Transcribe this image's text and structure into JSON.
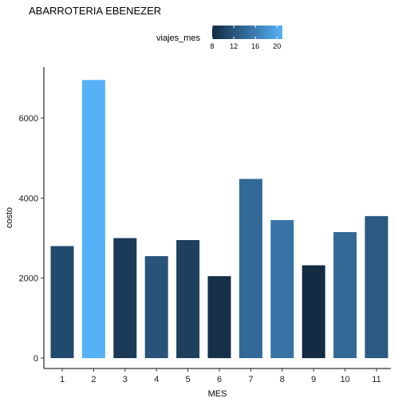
{
  "chart_data": {
    "type": "bar",
    "title": "ABARROTERIA EBENEZER",
    "xlabel": "MES",
    "ylabel": "costo",
    "categories": [
      "1",
      "2",
      "3",
      "4",
      "5",
      "6",
      "7",
      "8",
      "9",
      "10",
      "11"
    ],
    "values": [
      2800,
      6950,
      3000,
      2550,
      2950,
      2050,
      4480,
      3450,
      2320,
      3150,
      3550
    ],
    "fill_variable_values": [
      11,
      21,
      9.5,
      12,
      10,
      8.5,
      14,
      15,
      8,
      14,
      12.5
    ],
    "ylim": [
      0,
      7200
    ],
    "yticks": [
      0,
      2000,
      4000,
      6000
    ],
    "grid": false,
    "legend": {
      "title": "viajes_mes",
      "position": "top",
      "type": "colorbar",
      "ticks": [
        8,
        12,
        16,
        20
      ],
      "range": [
        8,
        21
      ],
      "color_low": "#132B43",
      "color_high": "#56B1F7"
    }
  }
}
